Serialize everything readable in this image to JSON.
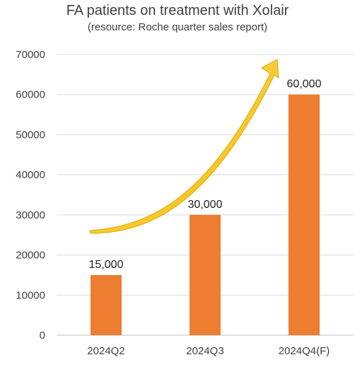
{
  "chart_data": {
    "type": "bar",
    "title": "FA patients on treatment with Xolair",
    "subtitle": "(resource: Roche quarter sales report)",
    "categories": [
      "2024Q2",
      "2024Q3",
      "2024Q4(F)"
    ],
    "values": [
      15000,
      30000,
      60000
    ],
    "data_labels": [
      "15,000",
      "30,000",
      "60,000"
    ],
    "y_ticks": [
      "0",
      "10000",
      "20000",
      "30000",
      "40000",
      "50000",
      "60000",
      "70000"
    ],
    "ylim": [
      0,
      70000
    ],
    "grid": true,
    "trend_arrow": "upward curved arrow",
    "colors": {
      "bar": "#ED7D31",
      "arrow": "#F5C518",
      "grid": "#D9D9D9"
    }
  }
}
